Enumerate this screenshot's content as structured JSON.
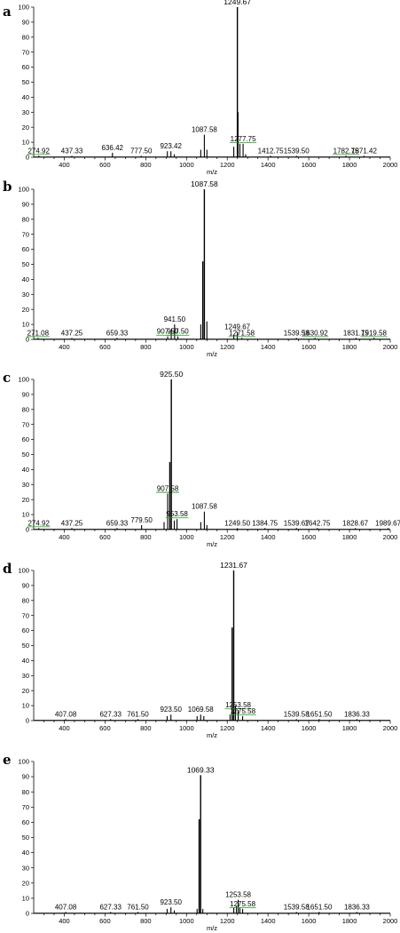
{
  "chart_data": [
    {
      "panel": "a",
      "type": "bar",
      "xlabel": "m/z",
      "ylabel": "",
      "xlim": [
        250,
        2000
      ],
      "ylim": [
        0,
        100
      ],
      "xticks": [
        400,
        600,
        800,
        1000,
        1200,
        1400,
        1600,
        1800,
        2000
      ],
      "yticks": [
        0,
        10,
        20,
        30,
        40,
        50,
        60,
        70,
        80,
        90,
        100
      ],
      "peaks": [
        {
          "x": 274.92,
          "y": 1,
          "label": "274.92",
          "green": true
        },
        {
          "x": 437.33,
          "y": 1,
          "label": "437.33"
        },
        {
          "x": 636.42,
          "y": 3,
          "label": "636.42"
        },
        {
          "x": 777.5,
          "y": 1,
          "label": "777.50"
        },
        {
          "x": 906,
          "y": 4
        },
        {
          "x": 923.42,
          "y": 4,
          "label": "923.42"
        },
        {
          "x": 940,
          "y": 2
        },
        {
          "x": 1070,
          "y": 5
        },
        {
          "x": 1087.58,
          "y": 15,
          "label": "1087.58"
        },
        {
          "x": 1100,
          "y": 5
        },
        {
          "x": 1232,
          "y": 7
        },
        {
          "x": 1249.67,
          "y": 100,
          "label": "1249.67"
        },
        {
          "x": 1253,
          "y": 30
        },
        {
          "x": 1262,
          "y": 9
        },
        {
          "x": 1277.75,
          "y": 9,
          "label": "1277.75",
          "green": true
        },
        {
          "x": 1290,
          "y": 2
        },
        {
          "x": 1412.75,
          "y": 1,
          "label": "1412.75"
        },
        {
          "x": 1539.5,
          "y": 1,
          "label": "1539.50"
        },
        {
          "x": 1782.75,
          "y": 1,
          "label": "1782.75",
          "green": true
        },
        {
          "x": 1871.42,
          "y": 1,
          "label": "1871.42"
        }
      ]
    },
    {
      "panel": "b",
      "type": "bar",
      "xlabel": "m/z",
      "ylabel": "",
      "xlim": [
        250,
        2000
      ],
      "ylim": [
        0,
        100
      ],
      "xticks": [
        400,
        600,
        800,
        1000,
        1200,
        1400,
        1600,
        1800,
        2000
      ],
      "yticks": [
        0,
        10,
        20,
        30,
        40,
        50,
        60,
        70,
        80,
        90,
        100
      ],
      "peaks": [
        {
          "x": 271.08,
          "y": 1,
          "label": "271.08",
          "green": true
        },
        {
          "x": 437.25,
          "y": 1,
          "label": "437.25"
        },
        {
          "x": 659.33,
          "y": 1,
          "label": "659.33"
        },
        {
          "x": 907.5,
          "y": 2,
          "label": "907.50",
          "green": true
        },
        {
          "x": 925,
          "y": 6
        },
        {
          "x": 941.5,
          "y": 10,
          "label": "941.50"
        },
        {
          "x": 957.5,
          "y": 2,
          "label": "957.50",
          "green": true
        },
        {
          "x": 1070,
          "y": 10
        },
        {
          "x": 1080,
          "y": 52
        },
        {
          "x": 1087.58,
          "y": 100,
          "label": "1087.58"
        },
        {
          "x": 1100,
          "y": 12
        },
        {
          "x": 1232,
          "y": 3
        },
        {
          "x": 1249.67,
          "y": 5,
          "label": "1249.67"
        },
        {
          "x": 1271.58,
          "y": 1,
          "label": "1271.58",
          "green": true
        },
        {
          "x": 1539.58,
          "y": 1,
          "label": "1539.58"
        },
        {
          "x": 1630.92,
          "y": 1,
          "label": "1630.92",
          "green": true
        },
        {
          "x": 1831.75,
          "y": 1,
          "label": "1831.75"
        },
        {
          "x": 1919.58,
          "y": 1,
          "label": "1919.58",
          "green": true
        }
      ]
    },
    {
      "panel": "c",
      "type": "bar",
      "xlabel": "m/z",
      "ylabel": "",
      "xlim": [
        250,
        2000
      ],
      "ylim": [
        0,
        100
      ],
      "xticks": [
        400,
        600,
        800,
        1000,
        1200,
        1400,
        1600,
        1800,
        2000
      ],
      "yticks": [
        0,
        10,
        20,
        30,
        40,
        50,
        60,
        70,
        80,
        90,
        100
      ],
      "peaks": [
        {
          "x": 274.92,
          "y": 1,
          "label": "274.92",
          "green": true
        },
        {
          "x": 437.25,
          "y": 1,
          "label": "437.25"
        },
        {
          "x": 659.33,
          "y": 1,
          "label": "659.33"
        },
        {
          "x": 779.5,
          "y": 3,
          "label": "779.50"
        },
        {
          "x": 890,
          "y": 5
        },
        {
          "x": 907.58,
          "y": 24,
          "label": "907.58",
          "green": true
        },
        {
          "x": 918,
          "y": 45
        },
        {
          "x": 925.5,
          "y": 100,
          "label": "925.50"
        },
        {
          "x": 940,
          "y": 6
        },
        {
          "x": 953.58,
          "y": 7,
          "label": "953.58",
          "green": true
        },
        {
          "x": 1070,
          "y": 5
        },
        {
          "x": 1087.58,
          "y": 12,
          "label": "1087.58"
        },
        {
          "x": 1100,
          "y": 3
        },
        {
          "x": 1249.5,
          "y": 1,
          "label": "1249.50"
        },
        {
          "x": 1384.75,
          "y": 1,
          "label": "1384.75"
        },
        {
          "x": 1539.67,
          "y": 1,
          "label": "1539.67"
        },
        {
          "x": 1642.75,
          "y": 1,
          "label": "1642.75"
        },
        {
          "x": 1828.67,
          "y": 1,
          "label": "1828.67"
        },
        {
          "x": 1989.67,
          "y": 1,
          "label": "1989.67"
        }
      ]
    },
    {
      "panel": "d",
      "type": "bar",
      "xlabel": "m/z",
      "ylabel": "",
      "xlim": [
        250,
        2000
      ],
      "ylim": [
        0,
        100
      ],
      "xticks": [
        400,
        600,
        800,
        1000,
        1200,
        1400,
        1600,
        1800,
        2000
      ],
      "yticks": [
        0,
        10,
        20,
        30,
        40,
        50,
        60,
        70,
        80,
        90,
        100
      ],
      "peaks": [
        {
          "x": 407.08,
          "y": 1,
          "label": "407.08"
        },
        {
          "x": 627.33,
          "y": 1,
          "label": "627.33"
        },
        {
          "x": 761.5,
          "y": 1,
          "label": "761.50"
        },
        {
          "x": 905,
          "y": 3
        },
        {
          "x": 923.5,
          "y": 4,
          "label": "923.50"
        },
        {
          "x": 1052,
          "y": 3
        },
        {
          "x": 1069.58,
          "y": 4,
          "label": "1069.58"
        },
        {
          "x": 1085,
          "y": 3
        },
        {
          "x": 1214,
          "y": 4
        },
        {
          "x": 1224,
          "y": 62
        },
        {
          "x": 1231.67,
          "y": 100,
          "label": "1231.67"
        },
        {
          "x": 1240,
          "y": 10
        },
        {
          "x": 1253.58,
          "y": 7,
          "label": "1253.58",
          "green": true
        },
        {
          "x": 1275.58,
          "y": 3,
          "label": "1275.58",
          "green": true
        },
        {
          "x": 1539.58,
          "y": 1,
          "label": "1539.58"
        },
        {
          "x": 1651.5,
          "y": 1,
          "label": "1651.50"
        },
        {
          "x": 1836.33,
          "y": 1,
          "label": "1836.33"
        }
      ]
    },
    {
      "panel": "e",
      "type": "bar",
      "xlabel": "m/z",
      "ylabel": "",
      "xlim": [
        250,
        2000
      ],
      "ylim": [
        0,
        100
      ],
      "xticks": [
        400,
        600,
        800,
        1000,
        1200,
        1400,
        1600,
        1800,
        2000
      ],
      "yticks": [
        0,
        10,
        20,
        30,
        40,
        50,
        60,
        70,
        80,
        90,
        100
      ],
      "peaks": [
        {
          "x": 407.08,
          "y": 1,
          "label": "407.08"
        },
        {
          "x": 627.33,
          "y": 1,
          "label": "627.33"
        },
        {
          "x": 761.5,
          "y": 1,
          "label": "761.50"
        },
        {
          "x": 905,
          "y": 3
        },
        {
          "x": 923.5,
          "y": 4,
          "label": "923.50"
        },
        {
          "x": 940,
          "y": 2
        },
        {
          "x": 1052,
          "y": 3
        },
        {
          "x": 1062,
          "y": 62
        },
        {
          "x": 1069.33,
          "y": 91,
          "label": "1069.33"
        },
        {
          "x": 1080,
          "y": 3
        },
        {
          "x": 1232,
          "y": 4
        },
        {
          "x": 1245,
          "y": 5
        },
        {
          "x": 1253.58,
          "y": 9,
          "label": "1253.58"
        },
        {
          "x": 1262,
          "y": 4
        },
        {
          "x": 1275.58,
          "y": 3,
          "label": "1275.58",
          "green": true
        },
        {
          "x": 1539.58,
          "y": 1,
          "label": "1539.58"
        },
        {
          "x": 1651.5,
          "y": 1,
          "label": "1651.50"
        },
        {
          "x": 1836.33,
          "y": 1,
          "label": "1836.33"
        }
      ]
    }
  ],
  "colors": {
    "peak": "#000000",
    "axis": "#000000",
    "peak_label_green": "#1a9a1a"
  }
}
